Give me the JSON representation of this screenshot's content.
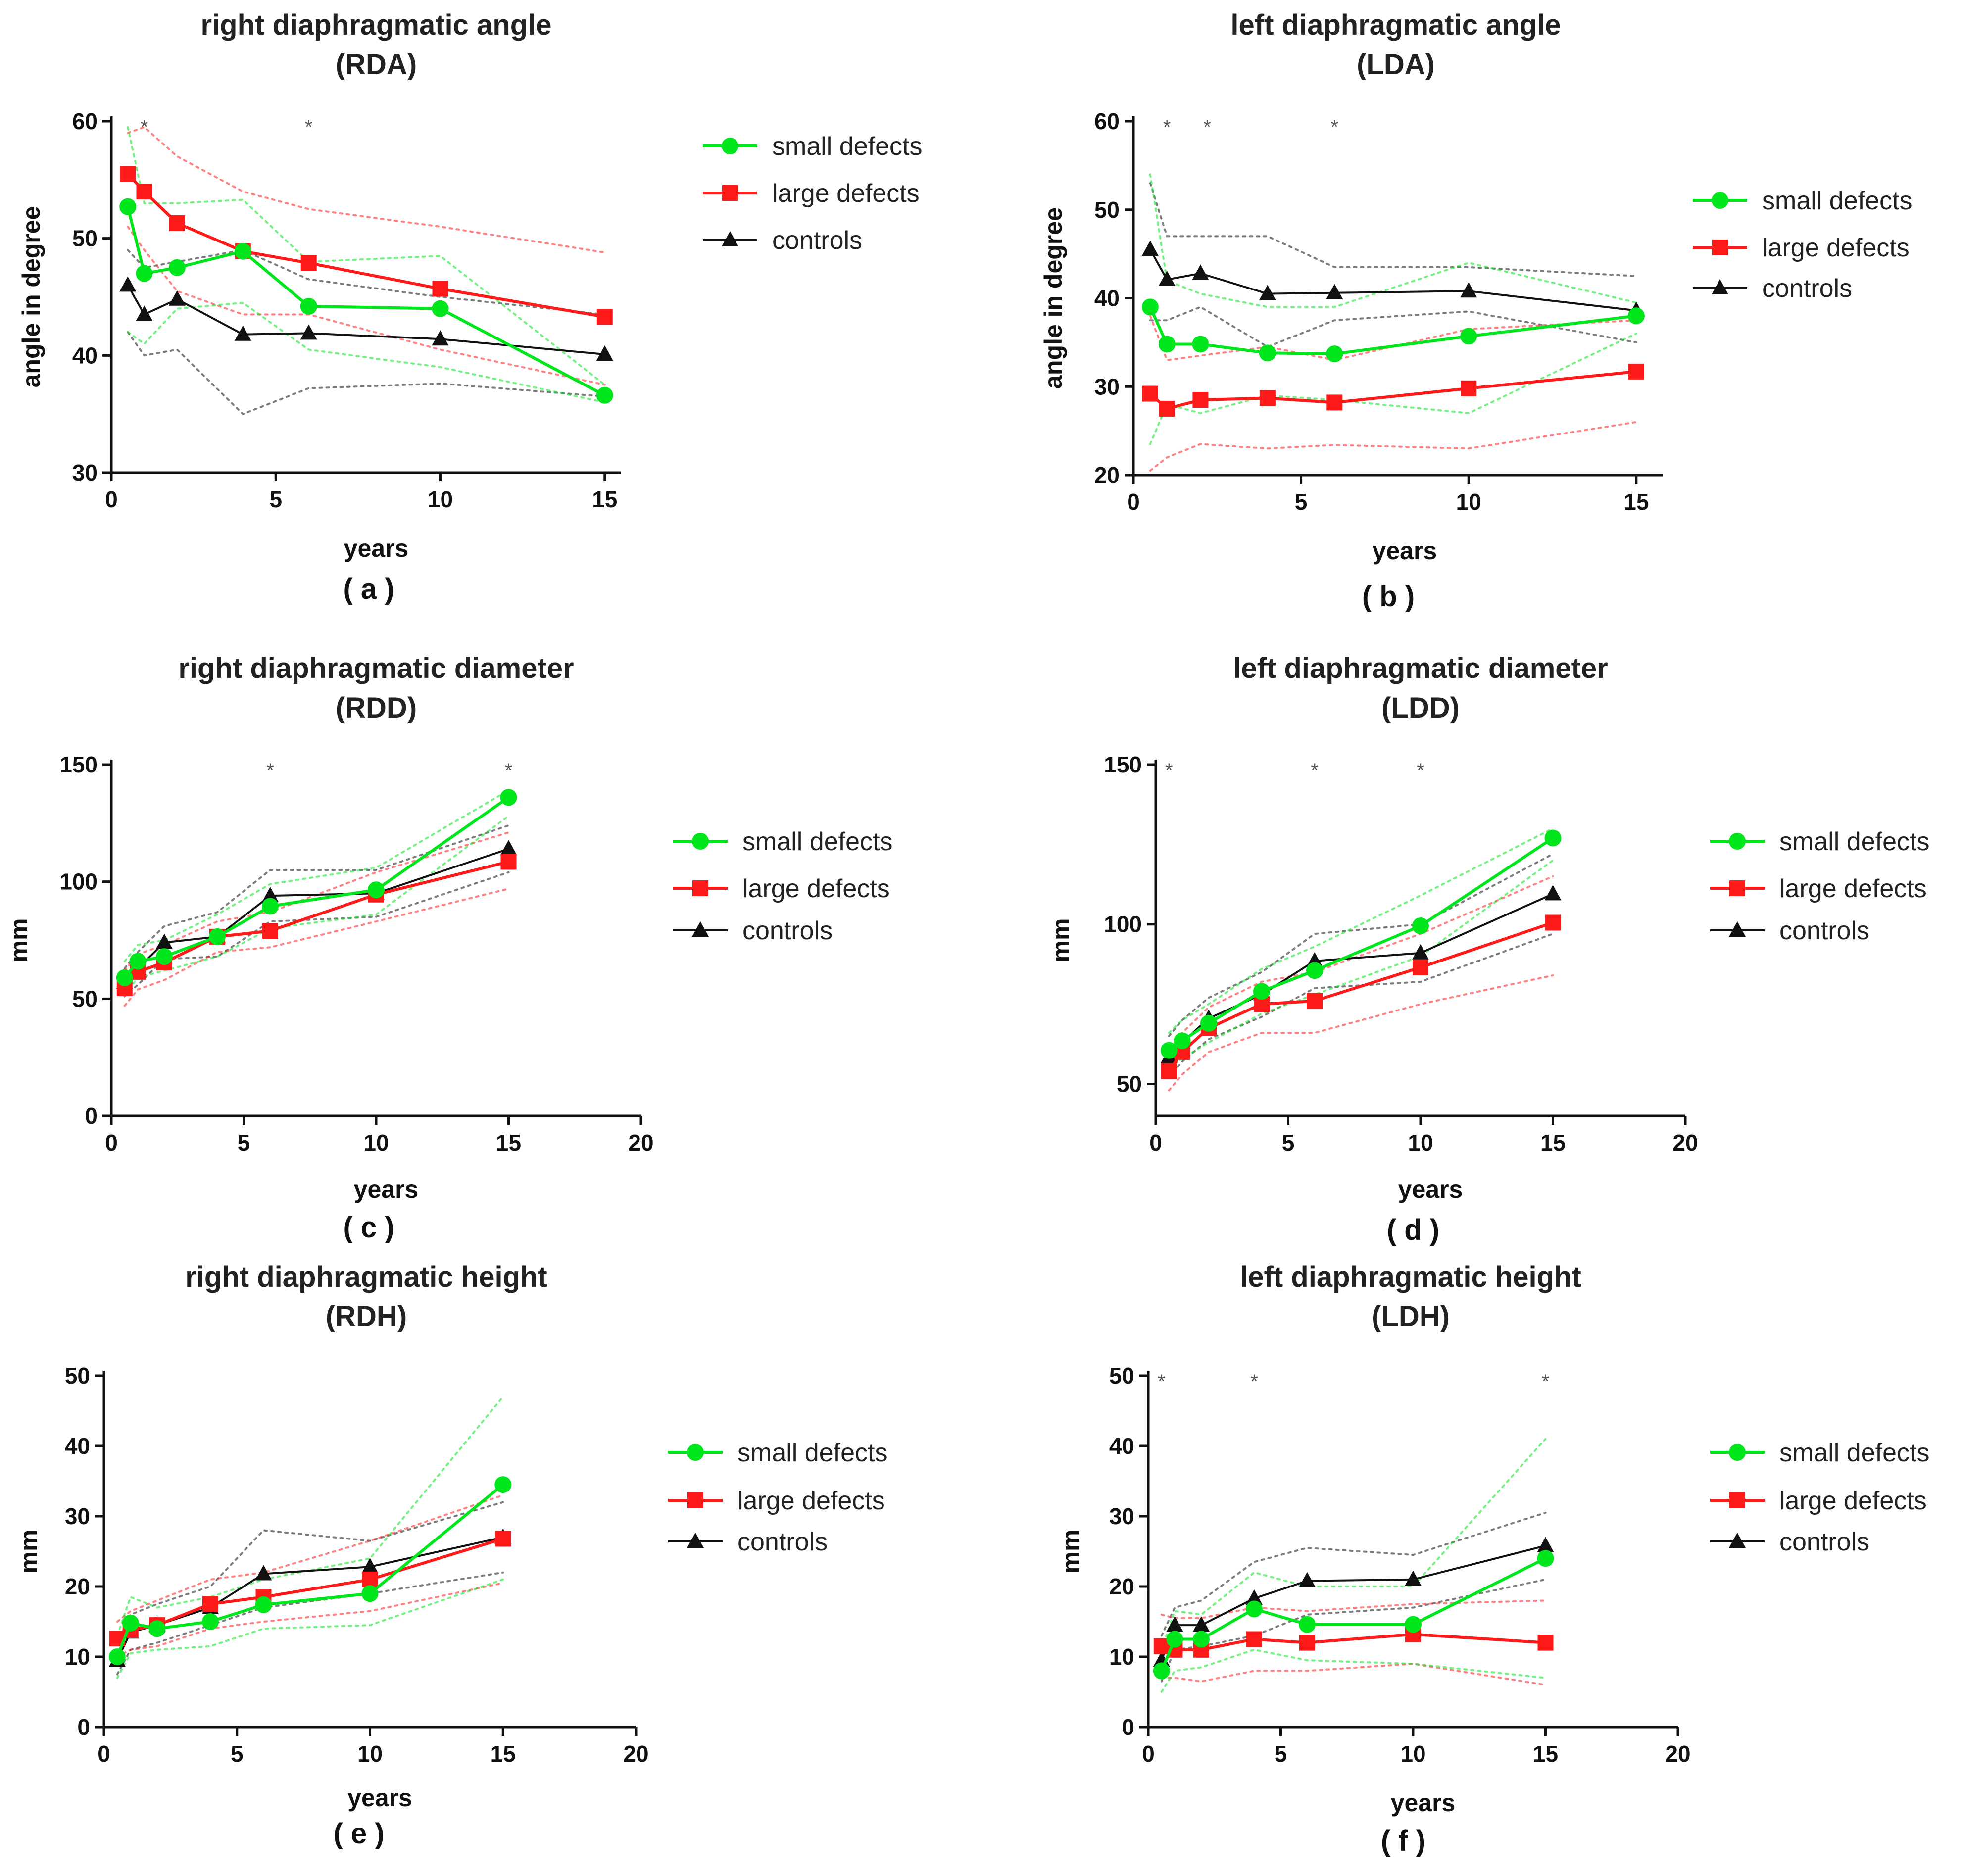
{
  "colors": {
    "small": "#00e61c",
    "large": "#ff1a1a",
    "controls": "#111111",
    "axis": "#111111"
  },
  "legend": {
    "small": "small defects",
    "large": "large defects",
    "controls": "controls"
  },
  "chart_data": [
    {
      "id": "a",
      "type": "line",
      "title": "right diaphragmatic angle",
      "subtitle": "(RDA)",
      "xlabel": "years",
      "ylabel": "angle in degree",
      "panel_label": "( a )",
      "xlim": [
        0,
        15.5
      ],
      "ylim": [
        30,
        60
      ],
      "xticks": [
        0,
        5,
        10,
        15
      ],
      "yticks": [
        30,
        40,
        50,
        60
      ],
      "significance": [
        {
          "x": 1,
          "label": "*"
        },
        {
          "x": 6,
          "label": "*"
        }
      ],
      "series": [
        {
          "name": "small defects",
          "key": "small",
          "x": [
            0.5,
            1,
            2,
            4,
            6,
            10,
            15
          ],
          "values": [
            52.7,
            47,
            47.5,
            48.9,
            44.2,
            44,
            36.6
          ],
          "lower": [
            42,
            41,
            44,
            44.5,
            40.5,
            39,
            36
          ],
          "upper": [
            59.5,
            53,
            53,
            53.3,
            48,
            48.5,
            37.5
          ]
        },
        {
          "name": "large defects",
          "key": "large",
          "x": [
            0.5,
            1,
            2,
            4,
            6,
            10,
            15
          ],
          "values": [
            55.5,
            54,
            51.3,
            48.9,
            47.9,
            45.7,
            43.3
          ],
          "lower": [
            51,
            49,
            45.5,
            43.5,
            43.5,
            40.5,
            37.5
          ],
          "upper": [
            59,
            59.5,
            57,
            54,
            52.5,
            51,
            48.8
          ]
        },
        {
          "name": "controls",
          "key": "controls",
          "x": [
            0.5,
            1,
            2,
            4,
            6,
            10,
            15
          ],
          "values": [
            46,
            43.5,
            44.8,
            41.8,
            41.9,
            41.4,
            40.1
          ],
          "lower": [
            42,
            40,
            40.5,
            35,
            37.2,
            37.6,
            36.5
          ],
          "upper": [
            49,
            47.5,
            48,
            49,
            46.5,
            45,
            43.5
          ]
        }
      ]
    },
    {
      "id": "b",
      "type": "line",
      "title": "left diaphragmatic angle",
      "subtitle": "(LDA)",
      "xlabel": "years",
      "ylabel": "angle in degree",
      "panel_label": "( b )",
      "xlim": [
        0,
        15.8
      ],
      "ylim": [
        20,
        60
      ],
      "xticks": [
        0,
        5,
        10,
        15
      ],
      "yticks": [
        20,
        30,
        40,
        50,
        60
      ],
      "significance": [
        {
          "x": 1,
          "label": "*"
        },
        {
          "x": 2.2,
          "label": "*"
        },
        {
          "x": 6,
          "label": "*"
        }
      ],
      "series": [
        {
          "name": "small defects",
          "key": "small",
          "x": [
            0.5,
            1,
            2,
            4,
            6,
            10,
            15
          ],
          "values": [
            39,
            34.8,
            34.8,
            33.8,
            33.7,
            35.7,
            38
          ],
          "lower": [
            23.5,
            28,
            27,
            29,
            28.5,
            27,
            36
          ],
          "upper": [
            54,
            42,
            40.5,
            39,
            39,
            44,
            39.5
          ]
        },
        {
          "name": "large defects",
          "key": "large",
          "x": [
            0.5,
            1,
            2,
            4,
            6,
            10,
            15
          ],
          "values": [
            29.2,
            27.5,
            28.5,
            28.7,
            28.2,
            29.8,
            31.7
          ],
          "lower": [
            20.5,
            22,
            23.5,
            23,
            23.4,
            23,
            26
          ],
          "upper": [
            38,
            33,
            33.5,
            34.5,
            33,
            36.5,
            37.5
          ]
        },
        {
          "name": "controls",
          "key": "controls",
          "x": [
            0.5,
            1,
            2,
            4,
            6,
            10,
            15
          ],
          "values": [
            45.5,
            42.1,
            42.8,
            40.5,
            40.6,
            40.8,
            38.6
          ],
          "lower": [
            37.5,
            37.5,
            39,
            34.5,
            37.5,
            38.5,
            35
          ],
          "upper": [
            53,
            47,
            47,
            47,
            43.5,
            43.5,
            42.5
          ]
        }
      ]
    },
    {
      "id": "c",
      "type": "line",
      "title": "right diaphragmatic diameter",
      "subtitle": "(RDD)",
      "xlabel": "years",
      "ylabel": "mm",
      "panel_label": "( c )",
      "xlim": [
        0,
        20
      ],
      "ylim": [
        0,
        150
      ],
      "xticks": [
        0,
        5,
        10,
        15,
        20
      ],
      "yticks": [
        0,
        50,
        100,
        150
      ],
      "significance": [
        {
          "x": 6,
          "label": "*"
        },
        {
          "x": 15,
          "label": "*"
        }
      ],
      "series": [
        {
          "name": "small defects",
          "key": "small",
          "x": [
            0.5,
            1,
            2,
            4,
            6,
            10,
            15
          ],
          "values": [
            59,
            66,
            68,
            76.5,
            89.5,
            96.5,
            136
          ],
          "lower": [
            52,
            59,
            62,
            68,
            80,
            86,
            128
          ],
          "upper": [
            66,
            73,
            75,
            86,
            99,
            106,
            139
          ]
        },
        {
          "name": "large defects",
          "key": "large",
          "x": [
            0.5,
            1,
            2,
            4,
            6,
            10,
            15
          ],
          "values": [
            54.5,
            61.5,
            65.5,
            76.5,
            79,
            94.5,
            108.5
          ],
          "lower": [
            47,
            54,
            58,
            70,
            72,
            83,
            97
          ],
          "upper": [
            62,
            69,
            73,
            83,
            87,
            104,
            121
          ]
        },
        {
          "name": "controls",
          "key": "controls",
          "x": [
            0.5,
            1,
            2,
            4,
            6,
            10,
            15
          ],
          "values": [
            57,
            63,
            74,
            76.5,
            94,
            95,
            114
          ],
          "lower": [
            51,
            56,
            67,
            68,
            83,
            85,
            104
          ],
          "upper": [
            63,
            70,
            81,
            87,
            105,
            105,
            124
          ]
        }
      ]
    },
    {
      "id": "d",
      "type": "line",
      "title": "left diaphragmatic diameter",
      "subtitle": "(LDD)",
      "xlabel": "years",
      "ylabel": "mm",
      "panel_label": "( d )",
      "xlim": [
        0,
        20
      ],
      "ylim": [
        40,
        150
      ],
      "xticks": [
        0,
        5,
        10,
        15,
        20
      ],
      "yticks": [
        50,
        100,
        150
      ],
      "significance": [
        {
          "x": 0.5,
          "label": "*"
        },
        {
          "x": 6,
          "label": "*"
        },
        {
          "x": 10,
          "label": "*"
        }
      ],
      "series": [
        {
          "name": "small defects",
          "key": "small",
          "x": [
            0.5,
            1,
            2,
            4,
            6,
            10,
            15
          ],
          "values": [
            60.5,
            63.5,
            69,
            79,
            85.5,
            99.5,
            127
          ],
          "lower": [
            55,
            58,
            63,
            72,
            78,
            90,
            120
          ],
          "upper": [
            66,
            70,
            75,
            86,
            93,
            109,
            130
          ]
        },
        {
          "name": "large defects",
          "key": "large",
          "x": [
            0.5,
            1,
            2,
            4,
            6,
            10,
            15
          ],
          "values": [
            54,
            60,
            67.5,
            75,
            76,
            86.5,
            100.5
          ],
          "lower": [
            48,
            53,
            60,
            66,
            66,
            75,
            84
          ],
          "upper": [
            60,
            66,
            74,
            82,
            85,
            97,
            115
          ]
        },
        {
          "name": "controls",
          "key": "controls",
          "x": [
            0.5,
            1,
            2,
            4,
            6,
            10,
            15
          ],
          "values": [
            58.5,
            63,
            70.5,
            78,
            88.5,
            91,
            109.5
          ],
          "lower": [
            52,
            57,
            64,
            71,
            80,
            82,
            97
          ],
          "upper": [
            65,
            70,
            77,
            85,
            97,
            100,
            122
          ]
        }
      ]
    },
    {
      "id": "e",
      "type": "line",
      "title": "right diaphragmatic height",
      "subtitle": "(RDH)",
      "xlabel": "years",
      "ylabel": "mm",
      "panel_label": "( e )",
      "xlim": [
        0,
        20
      ],
      "ylim": [
        0,
        50
      ],
      "xticks": [
        0,
        5,
        10,
        15,
        20
      ],
      "yticks": [
        0,
        10,
        20,
        30,
        40,
        50
      ],
      "significance": [],
      "series": [
        {
          "name": "small defects",
          "key": "small",
          "x": [
            0.5,
            1,
            2,
            4,
            6,
            10,
            15
          ],
          "values": [
            10,
            14.8,
            14,
            15,
            17.4,
            19,
            34.5
          ],
          "lower": [
            7,
            10.5,
            11,
            11.5,
            14,
            14.5,
            21
          ],
          "upper": [
            13,
            18.5,
            17,
            18.5,
            21,
            24,
            47
          ]
        },
        {
          "name": "large defects",
          "key": "large",
          "x": [
            0.5,
            1,
            2,
            4,
            6,
            10,
            15
          ],
          "values": [
            12.6,
            13.8,
            14.5,
            17.5,
            18.5,
            21,
            26.8
          ],
          "lower": [
            10,
            11,
            11.5,
            14,
            15,
            16.5,
            20.5
          ],
          "upper": [
            15,
            16.5,
            18,
            21,
            22,
            26.5,
            33
          ]
        },
        {
          "name": "controls",
          "key": "controls",
          "x": [
            0.5,
            1,
            2,
            4,
            6,
            10,
            15
          ],
          "values": [
            9.5,
            13.5,
            14.5,
            17,
            21.8,
            22.8,
            27
          ],
          "lower": [
            7.5,
            11,
            12,
            14.5,
            17,
            19,
            22
          ],
          "upper": [
            12,
            16,
            17.5,
            20,
            28,
            26.5,
            32
          ]
        }
      ]
    },
    {
      "id": "f",
      "type": "line",
      "title": "left diaphragmatic height",
      "subtitle": "(LDH)",
      "xlabel": "years",
      "ylabel": "mm",
      "panel_label": "( f )",
      "xlim": [
        0,
        20
      ],
      "ylim": [
        0,
        50
      ],
      "xticks": [
        0,
        5,
        10,
        15,
        20
      ],
      "yticks": [
        0,
        10,
        20,
        30,
        40,
        50
      ],
      "significance": [
        {
          "x": 0.5,
          "label": "*"
        },
        {
          "x": 4,
          "label": "*"
        },
        {
          "x": 15,
          "label": "*"
        }
      ],
      "series": [
        {
          "name": "small defects",
          "key": "small",
          "x": [
            0.5,
            1,
            2,
            4,
            6,
            10,
            15
          ],
          "values": [
            8,
            12.5,
            12.5,
            16.8,
            14.6,
            14.6,
            24
          ],
          "lower": [
            5,
            8,
            8.5,
            11,
            9.5,
            9,
            7
          ],
          "upper": [
            11,
            16.5,
            16,
            22,
            20,
            20,
            41
          ]
        },
        {
          "name": "large defects",
          "key": "large",
          "x": [
            0.5,
            1,
            2,
            4,
            6,
            10,
            15
          ],
          "values": [
            11.5,
            11,
            11,
            12.5,
            12,
            13.2,
            12
          ],
          "lower": [
            7,
            7,
            6.5,
            8,
            8,
            9,
            6
          ],
          "upper": [
            16,
            15.5,
            15.5,
            17,
            16.5,
            17.5,
            18
          ]
        },
        {
          "name": "controls",
          "key": "controls",
          "x": [
            0.5,
            1,
            2,
            4,
            6,
            10,
            15
          ],
          "values": [
            9.5,
            14.5,
            14.5,
            18.3,
            20.8,
            21,
            25.8
          ],
          "lower": [
            6.5,
            11,
            11.5,
            13,
            16,
            17,
            21
          ],
          "upper": [
            13,
            17,
            18,
            23.5,
            25.5,
            24.5,
            30.5
          ]
        }
      ]
    }
  ]
}
